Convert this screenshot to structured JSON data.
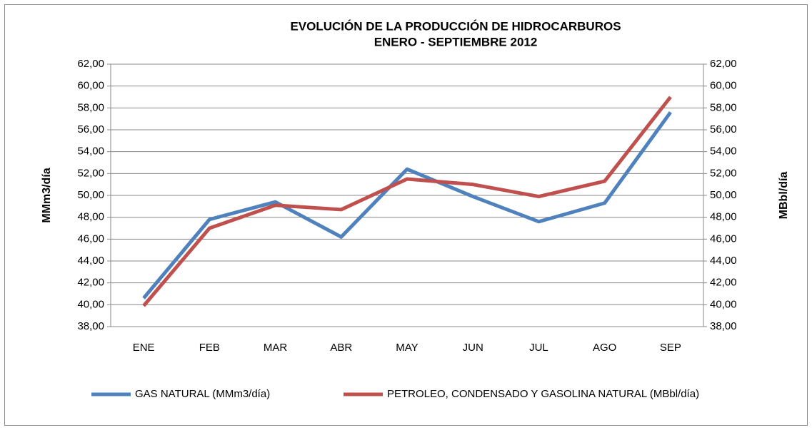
{
  "chart_data": {
    "type": "line",
    "title": "EVOLUCIÓN DE LA PRODUCCIÓN DE HIDROCARBUROS",
    "subtitle": "ENERO - SEPTIEMBRE 2012",
    "y_label": "MMm3/día",
    "y2_label": "MBbl/día",
    "categories": [
      "ENE",
      "FEB",
      "MAR",
      "ABR",
      "MAY",
      "JUN",
      "JUL",
      "AGO",
      "SEP"
    ],
    "series": [
      {
        "name": "GAS NATURAL (MMm3/día)",
        "color": "#4f81bd",
        "values": [
          40.6,
          47.8,
          49.4,
          46.2,
          52.4,
          49.9,
          47.6,
          49.3,
          57.6
        ]
      },
      {
        "name": "PETROLEO, CONDENSADO Y GASOLINA NATURAL (MBbl/día)",
        "color": "#c0504d",
        "axis": "y2",
        "values": [
          39.9,
          47.0,
          49.1,
          48.7,
          51.5,
          51.0,
          49.9,
          51.3,
          59.0
        ]
      }
    ],
    "ylim": [
      38,
      62
    ],
    "yticks": [
      {
        "value": 38,
        "label": "38,00"
      },
      {
        "value": 40,
        "label": "40,00"
      },
      {
        "value": 42,
        "label": "42,00"
      },
      {
        "value": 44,
        "label": "44,00"
      },
      {
        "value": 46,
        "label": "46,00"
      },
      {
        "value": 48,
        "label": "48,00"
      },
      {
        "value": 50,
        "label": "50,00"
      },
      {
        "value": 52,
        "label": "52,00"
      },
      {
        "value": 54,
        "label": "54,00"
      },
      {
        "value": 56,
        "label": "56,00"
      },
      {
        "value": 58,
        "label": "58,00"
      },
      {
        "value": 60,
        "label": "60,00"
      },
      {
        "value": 62,
        "label": "62,00"
      }
    ],
    "y2lim": [
      38,
      62
    ],
    "y2ticks": [
      {
        "value": 38,
        "label": "38,00"
      },
      {
        "value": 40,
        "label": "40,00"
      },
      {
        "value": 42,
        "label": "42,00"
      },
      {
        "value": 44,
        "label": "44,00"
      },
      {
        "value": 46,
        "label": "46,00"
      },
      {
        "value": 48,
        "label": "48,00"
      },
      {
        "value": 50,
        "label": "50,00"
      },
      {
        "value": 52,
        "label": "52,00"
      },
      {
        "value": 54,
        "label": "54,00"
      },
      {
        "value": 56,
        "label": "56,00"
      },
      {
        "value": 58,
        "label": "58,00"
      },
      {
        "value": 60,
        "label": "60,00"
      },
      {
        "value": 62,
        "label": "62,00"
      }
    ],
    "grid": true,
    "legend": "bottom"
  }
}
